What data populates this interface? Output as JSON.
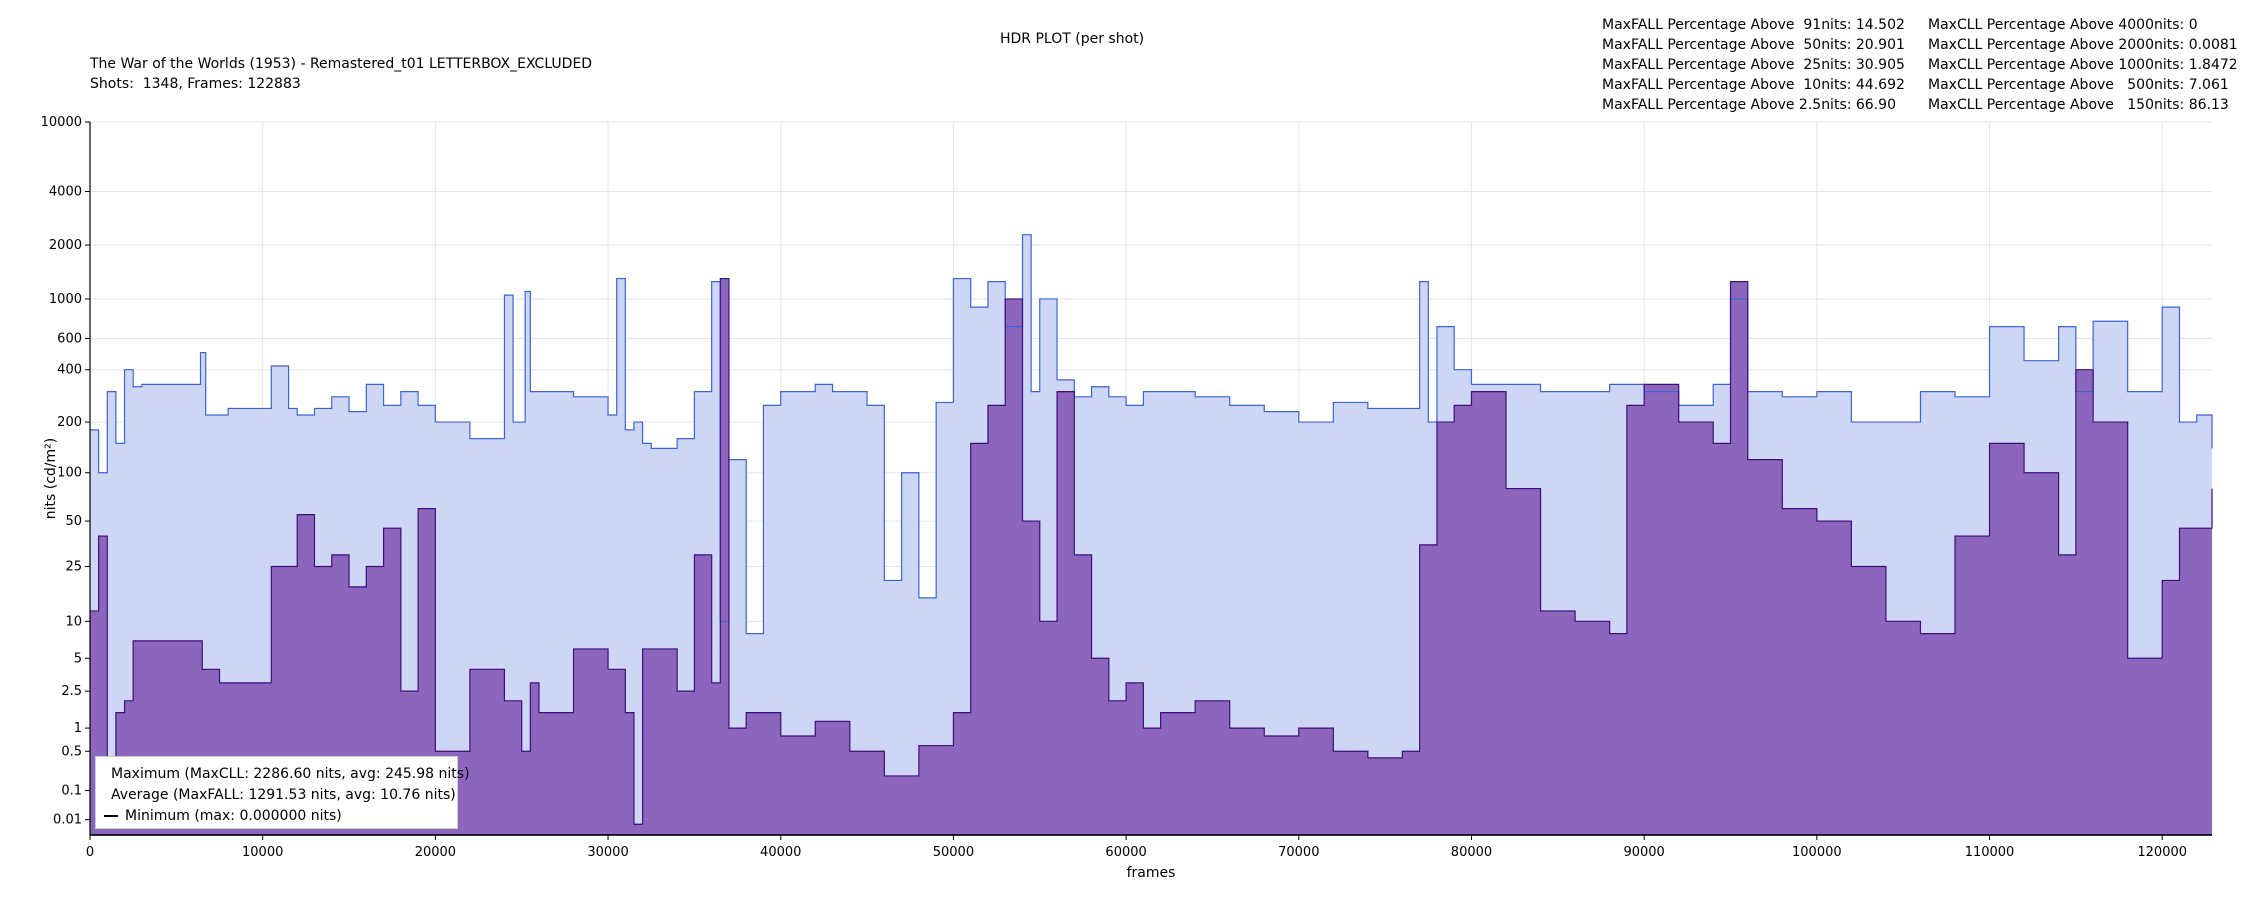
{
  "header": {
    "title": "HDR PLOT (per shot)",
    "subtitle": "The War of the Worlds (1953) - Remastered_t01 LETTERBOX_EXCLUDED",
    "shots_frames": "Shots:  1348, Frames: 122883"
  },
  "stats": {
    "maxfall": [
      "MaxFALL Percentage Above  91nits: 14.502",
      "MaxFALL Percentage Above  50nits: 20.901",
      "MaxFALL Percentage Above  25nits: 30.905",
      "MaxFALL Percentage Above  10nits: 44.692",
      "MaxFALL Percentage Above 2.5nits: 66.90"
    ],
    "maxcll": [
      "MaxCLL Percentage Above 4000nits: 0",
      "MaxCLL Percentage Above 2000nits: 0.0081",
      "MaxCLL Percentage Above 1000nits: 1.8472",
      "MaxCLL Percentage Above   500nits: 7.061",
      "MaxCLL Percentage Above   150nits: 86.13"
    ]
  },
  "legend": {
    "maximum": "Maximum (MaxCLL: 2286.60 nits, avg: 245.98 nits)",
    "average": "Average (MaxFALL: 1291.53 nits, avg: 10.76 nits)",
    "minimum": "Minimum (max: 0.000000 nits)"
  },
  "colors": {
    "max_line": "#3b64d8",
    "max_fill": "#cdd6f5",
    "avg_line": "#3d0f7a",
    "avg_fill": "#8c66bd",
    "min_line": "#000000",
    "grid": "#e6e6e6"
  },
  "chart_data": {
    "type": "area",
    "xlabel": "frames",
    "ylabel": "nits (cd/m²)",
    "x_range": [
      0,
      122883
    ],
    "y_scale": "pq",
    "y_ticks": [
      {
        "value": 0.01,
        "label": "0.01"
      },
      {
        "value": 0.1,
        "label": "0.1"
      },
      {
        "value": 0.5,
        "label": "0.5"
      },
      {
        "value": 1,
        "label": "1"
      },
      {
        "value": 2.5,
        "label": "2.5"
      },
      {
        "value": 5,
        "label": "5"
      },
      {
        "value": 10,
        "label": "10"
      },
      {
        "value": 25,
        "label": "25"
      },
      {
        "value": 50,
        "label": "50"
      },
      {
        "value": 100,
        "label": "100"
      },
      {
        "value": 200,
        "label": "200"
      },
      {
        "value": 400,
        "label": "400"
      },
      {
        "value": 600,
        "label": "600"
      },
      {
        "value": 1000,
        "label": "1000"
      },
      {
        "value": 2000,
        "label": "2000"
      },
      {
        "value": 4000,
        "label": "4000"
      },
      {
        "value": 10000,
        "label": "10000"
      }
    ],
    "x_ticks": [
      {
        "value": 0,
        "label": "0"
      },
      {
        "value": 10000,
        "label": "10000"
      },
      {
        "value": 20000,
        "label": "20000"
      },
      {
        "value": 30000,
        "label": "30000"
      },
      {
        "value": 40000,
        "label": "40000"
      },
      {
        "value": 50000,
        "label": "50000"
      },
      {
        "value": 60000,
        "label": "60000"
      },
      {
        "value": 70000,
        "label": "70000"
      },
      {
        "value": 80000,
        "label": "80000"
      },
      {
        "value": 90000,
        "label": "90000"
      },
      {
        "value": 100000,
        "label": "100000"
      },
      {
        "value": 110000,
        "label": "110000"
      },
      {
        "value": 120000,
        "label": "120000"
      }
    ],
    "grid": true,
    "legend_position": "bottom-left",
    "series": [
      {
        "name": "Maximum (MaxCLL: 2286.60 nits, avg: 245.98 nits)",
        "x": [
          0,
          500,
          1000,
          1500,
          2000,
          2500,
          3000,
          5000,
          6400,
          6700,
          8000,
          10000,
          10500,
          11500,
          12000,
          13000,
          14000,
          15000,
          16000,
          17000,
          18000,
          19000,
          20000,
          22000,
          24000,
          24500,
          25200,
          25500,
          26500,
          28000,
          30000,
          30500,
          31000,
          31500,
          32000,
          32500,
          34000,
          35000,
          36000,
          36500,
          37000,
          38000,
          39000,
          40000,
          42000,
          43000,
          45000,
          46000,
          47000,
          48000,
          49000,
          50000,
          51000,
          52000,
          53000,
          54000,
          54500,
          55000,
          56000,
          57000,
          58000,
          59000,
          60000,
          61000,
          62000,
          64000,
          66000,
          68000,
          70000,
          72000,
          74000,
          76000,
          77000,
          77500,
          78000,
          79000,
          80000,
          82000,
          84000,
          86000,
          88000,
          90000,
          92000,
          94000,
          95000,
          96000,
          98000,
          100000,
          102000,
          104000,
          106000,
          108000,
          110000,
          112000,
          114000,
          115000,
          116000,
          118000,
          120000,
          121000,
          122000,
          122883
        ],
        "values": [
          180,
          100,
          300,
          150,
          400,
          320,
          330,
          330,
          500,
          220,
          240,
          240,
          420,
          240,
          220,
          240,
          280,
          230,
          330,
          250,
          300,
          250,
          200,
          160,
          1050,
          200,
          1100,
          300,
          300,
          280,
          220,
          1300,
          180,
          200,
          150,
          140,
          160,
          300,
          1250,
          10,
          120,
          8,
          250,
          300,
          330,
          300,
          250,
          20,
          100,
          15,
          260,
          1300,
          900,
          1250,
          700,
          2286,
          300,
          1000,
          350,
          280,
          320,
          280,
          250,
          300,
          300,
          280,
          250,
          230,
          200,
          260,
          240,
          240,
          1250,
          200,
          700,
          400,
          330,
          330,
          300,
          300,
          330,
          300,
          250,
          330,
          1000,
          300,
          280,
          300,
          200,
          200,
          300,
          280,
          700,
          450,
          700,
          300,
          750,
          300,
          900,
          200,
          220,
          140
        ]
      },
      {
        "name": "Average (MaxFALL: 1291.53 nits, avg: 10.76 nits)",
        "x": [
          0,
          500,
          1000,
          1500,
          2000,
          2500,
          3000,
          5000,
          6500,
          7500,
          8000,
          10000,
          10500,
          11500,
          12000,
          13000,
          14000,
          15000,
          16000,
          17000,
          18000,
          19000,
          20000,
          22000,
          24000,
          25000,
          25500,
          26000,
          28000,
          30000,
          31000,
          31500,
          32000,
          33000,
          34000,
          35000,
          36000,
          36500,
          37000,
          38000,
          40000,
          42000,
          44000,
          46000,
          48000,
          50000,
          51000,
          52000,
          53000,
          54000,
          55000,
          56000,
          57000,
          58000,
          59000,
          60000,
          61000,
          62000,
          64000,
          66000,
          68000,
          70000,
          72000,
          74000,
          76000,
          77000,
          78000,
          79000,
          80000,
          82000,
          84000,
          86000,
          88000,
          89000,
          90000,
          92000,
          94000,
          95000,
          96000,
          98000,
          100000,
          102000,
          104000,
          106000,
          108000,
          110000,
          112000,
          114000,
          115000,
          116000,
          118000,
          120000,
          121000,
          122000,
          122883
        ],
        "values": [
          12,
          40,
          0.05,
          1.5,
          2,
          7,
          7,
          7,
          4,
          3,
          3,
          3,
          25,
          25,
          55,
          25,
          30,
          18,
          25,
          45,
          2.5,
          60,
          0.5,
          4,
          2,
          0.5,
          3,
          1.5,
          6,
          4,
          1.5,
          0.005,
          6,
          6,
          2.5,
          30,
          3,
          1300,
          1,
          1.5,
          0.8,
          1.2,
          0.5,
          0.2,
          0.6,
          1.5,
          150,
          250,
          1000,
          50,
          10,
          300,
          30,
          5,
          2,
          3,
          1,
          1.5,
          2,
          1,
          0.8,
          1,
          0.5,
          0.4,
          0.5,
          35,
          200,
          250,
          300,
          80,
          12,
          10,
          8,
          250,
          330,
          200,
          150,
          1250,
          120,
          60,
          50,
          25,
          10,
          8,
          40,
          150,
          100,
          30,
          400,
          200,
          5,
          20,
          45,
          45,
          80
        ]
      },
      {
        "name": "Minimum (max: 0.000000 nits)",
        "x": [
          0,
          122883
        ],
        "values": [
          0,
          0
        ]
      }
    ]
  }
}
